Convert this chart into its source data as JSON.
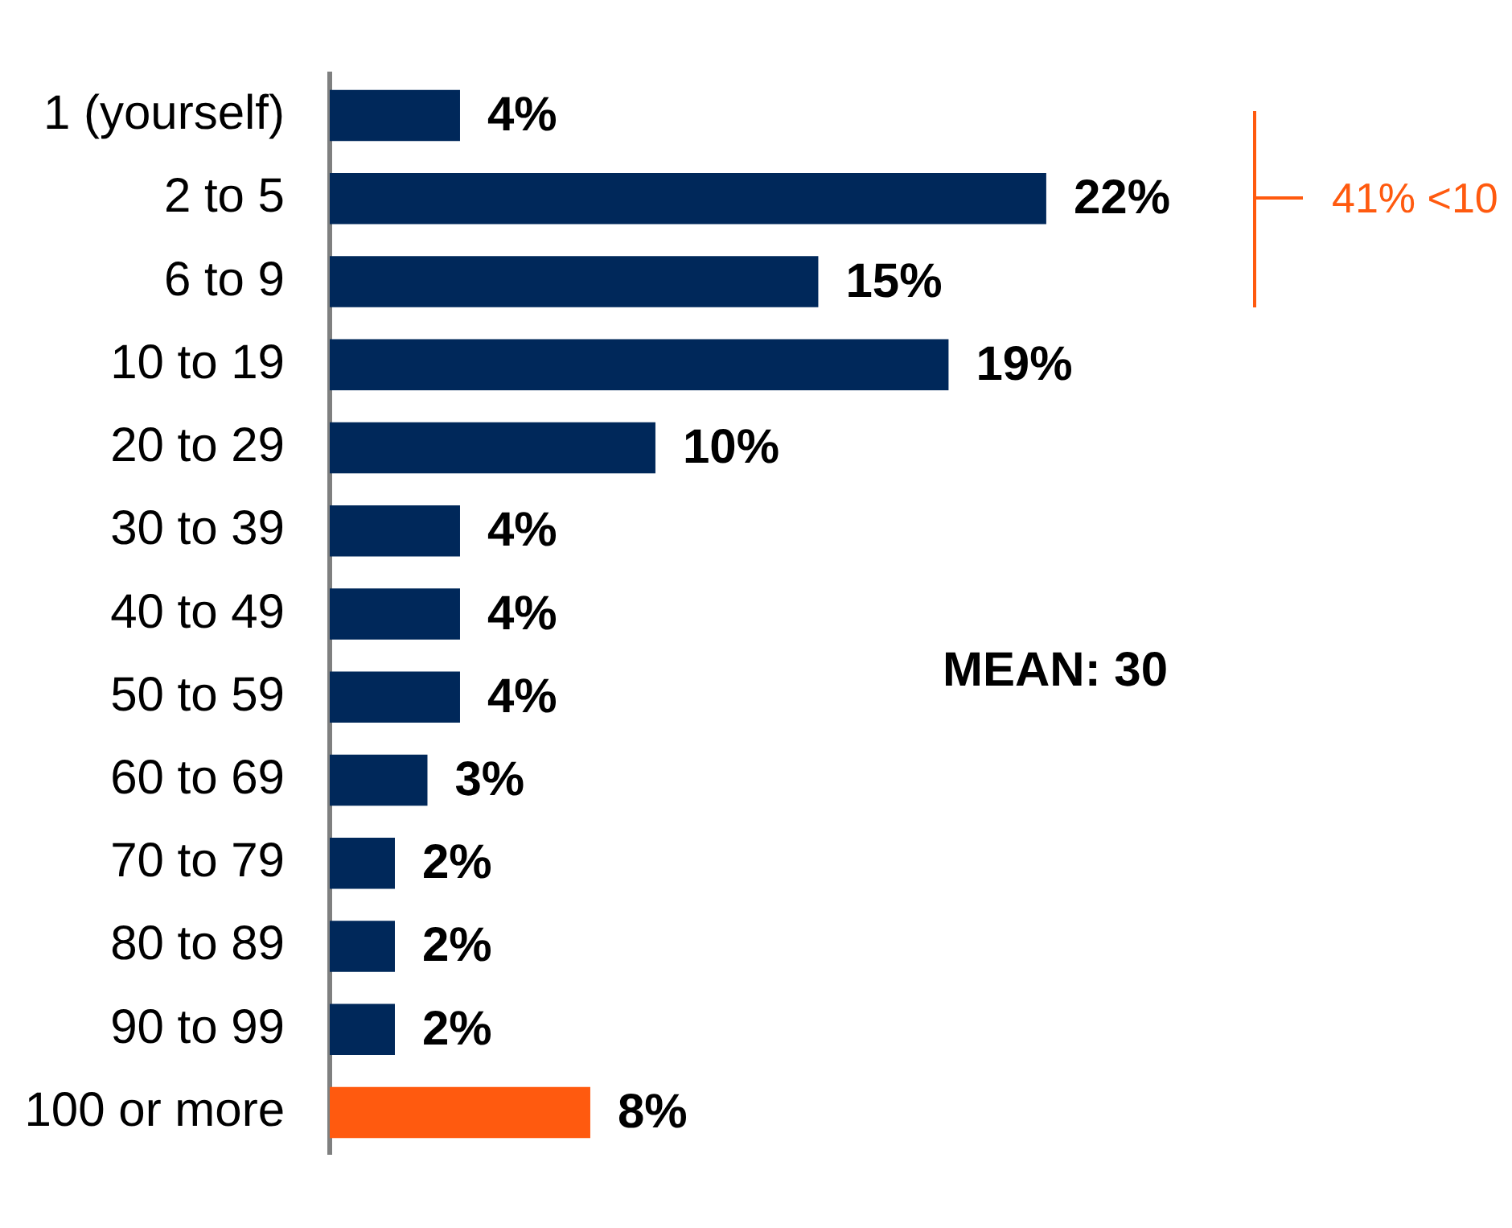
{
  "chart_data": {
    "type": "bar",
    "orientation": "horizontal",
    "categories": [
      "1 (yourself)",
      "2 to 5",
      "6 to 9",
      "10 to 19",
      "20 to 29",
      "30 to 39",
      "40 to 49",
      "50 to 59",
      "60 to 69",
      "70 to 79",
      "80 to 89",
      "90 to 99",
      "100 or more"
    ],
    "values": [
      4,
      22,
      15,
      19,
      10,
      4,
      4,
      4,
      3,
      2,
      2,
      2,
      8
    ],
    "colors": [
      "#00285a",
      "#00285a",
      "#00285a",
      "#00285a",
      "#00285a",
      "#00285a",
      "#00285a",
      "#00285a",
      "#00285a",
      "#00285a",
      "#00285a",
      "#00285a",
      "#ff5a0f"
    ],
    "value_labels": [
      "4%",
      "22%",
      "15%",
      "19%",
      "10%",
      "4%",
      "4%",
      "4%",
      "3%",
      "2%",
      "2%",
      "2%",
      "8%"
    ],
    "annotations": [
      "41% <10",
      "MEAN: 30"
    ],
    "tick_labels": "y",
    "grid": false,
    "legend": false
  }
}
